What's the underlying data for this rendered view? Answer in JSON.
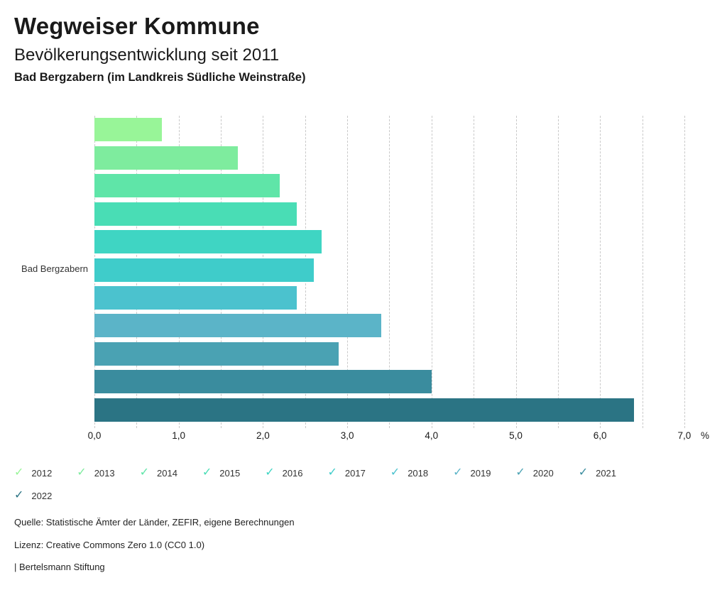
{
  "header": {
    "title": "Wegweiser Kommune",
    "subtitle": "Bevölkerungsentwicklung seit 2011",
    "region": "Bad Bergzabern (im Landkreis Südliche Weinstraße)"
  },
  "chart_data": {
    "type": "bar",
    "orientation": "horizontal",
    "group_label": "Bad Bergzabern",
    "categories": [
      "2012",
      "2013",
      "2014",
      "2015",
      "2016",
      "2017",
      "2018",
      "2019",
      "2020",
      "2021",
      "2022"
    ],
    "values": [
      0.8,
      1.7,
      2.2,
      2.4,
      2.7,
      2.6,
      2.4,
      3.4,
      2.9,
      4.0,
      6.4
    ],
    "colors": [
      "#98F598",
      "#7EEC9E",
      "#5FE5A8",
      "#49DDB5",
      "#3FD5C3",
      "#3FCCCA",
      "#4BC2CE",
      "#5BB4C8",
      "#4AA2B3",
      "#3A8C9E",
      "#2B7484"
    ],
    "xlim": [
      0,
      7
    ],
    "x_tick_labels": [
      "0,0",
      "1,0",
      "2,0",
      "3,0",
      "4,0",
      "5,0",
      "6,0",
      "7,0"
    ],
    "x_minor_step": 0.5,
    "x_unit": "%",
    "grid": "vertical-dashed",
    "legend_position": "bottom",
    "check_icon": "✓"
  },
  "footer": {
    "source": "Quelle: Statistische Ämter der Länder, ZEFIR, eigene Berechnungen",
    "license": "Lizenz: Creative Commons Zero 1.0 (CC0 1.0)",
    "attribution": "| Bertelsmann Stiftung"
  }
}
